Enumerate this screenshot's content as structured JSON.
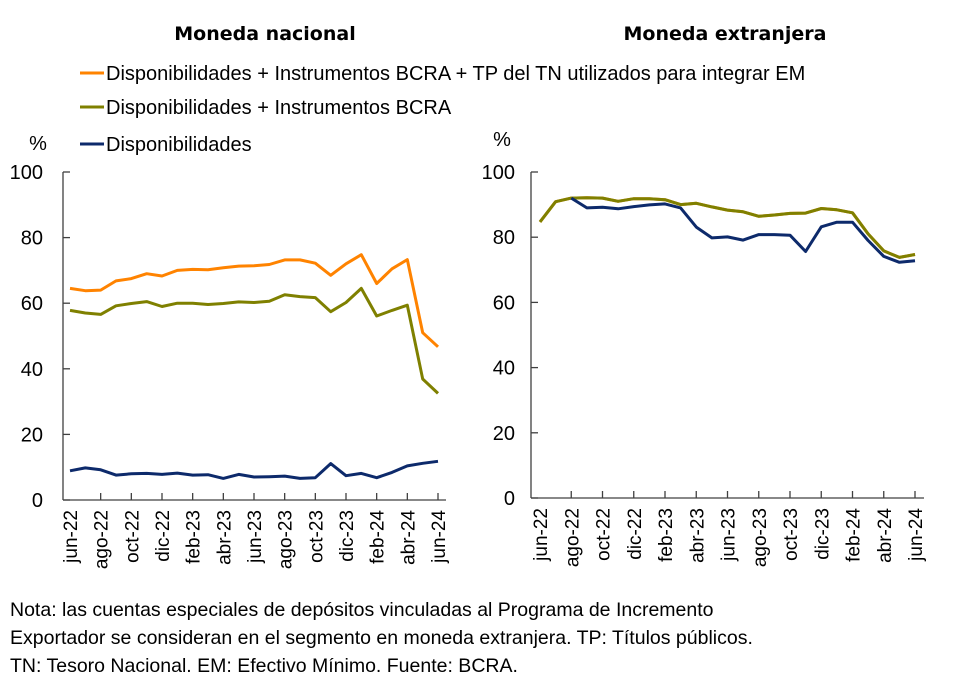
{
  "chart_data": [
    {
      "type": "line",
      "title": "Moneda nacional",
      "ylabel": "%",
      "xlabel": "",
      "ylim": [
        0,
        100
      ],
      "yticks": [
        0,
        20,
        40,
        60,
        80,
        100
      ],
      "grid": false,
      "legend_position": "top",
      "x": [
        "jun-22",
        "jul-22",
        "ago-22",
        "sep-22",
        "oct-22",
        "nov-22",
        "dic-22",
        "ene-23",
        "feb-23",
        "mar-23",
        "abr-23",
        "may-23",
        "jun-23",
        "jul-23",
        "ago-23",
        "sep-23",
        "oct-23",
        "nov-23",
        "dic-23",
        "ene-24",
        "feb-24",
        "mar-24",
        "abr-24",
        "may-24",
        "jun-24"
      ],
      "xtick_labels": [
        "jun-22",
        "ago-22",
        "oct-22",
        "dic-22",
        "feb-23",
        "abr-23",
        "jun-23",
        "ago-23",
        "oct-23",
        "dic-23",
        "feb-24",
        "abr-24",
        "jun-24"
      ],
      "series": [
        {
          "name": "Disponibilidades + Instrumentos BCRA + TP del TN utilizados para integrar EM",
          "color": "#ff8300",
          "values": [
            64.5,
            63.8,
            64.0,
            66.8,
            67.5,
            69.0,
            68.3,
            70.0,
            70.3,
            70.2,
            70.8,
            71.3,
            71.4,
            71.8,
            73.2,
            73.2,
            72.2,
            68.5,
            72.0,
            74.8,
            66.0,
            70.5,
            73.3,
            51.0,
            46.7
          ]
        },
        {
          "name": "Disponibilidades + Instrumentos BCRA",
          "color": "#7f8000",
          "values": [
            57.8,
            57.0,
            56.6,
            59.2,
            59.9,
            60.5,
            59.0,
            60.0,
            60.0,
            59.6,
            59.9,
            60.4,
            60.2,
            60.6,
            62.6,
            62.0,
            61.7,
            57.4,
            60.2,
            64.5,
            56.1,
            57.8,
            59.4,
            36.9,
            32.5
          ]
        },
        {
          "name": "Disponibilidades",
          "color": "#0d2a6b",
          "values": [
            8.9,
            9.8,
            9.2,
            7.6,
            8.0,
            8.1,
            7.8,
            8.2,
            7.6,
            7.7,
            6.6,
            7.8,
            7.0,
            7.1,
            7.3,
            6.6,
            6.8,
            11.1,
            7.4,
            8.1,
            6.8,
            8.4,
            10.4,
            11.2,
            11.8
          ]
        }
      ]
    },
    {
      "type": "line",
      "title": "Moneda extranjera",
      "ylabel": "%",
      "xlabel": "",
      "ylim": [
        0,
        100
      ],
      "yticks": [
        0,
        20,
        40,
        60,
        80,
        100
      ],
      "grid": false,
      "x": [
        "jun-22",
        "jul-22",
        "ago-22",
        "sep-22",
        "oct-22",
        "nov-22",
        "dic-22",
        "ene-23",
        "feb-23",
        "mar-23",
        "abr-23",
        "may-23",
        "jun-23",
        "jul-23",
        "ago-23",
        "sep-23",
        "oct-23",
        "nov-23",
        "dic-23",
        "ene-24",
        "feb-24",
        "mar-24",
        "abr-24",
        "may-24",
        "jun-24"
      ],
      "xtick_labels": [
        "jun-22",
        "ago-22",
        "oct-22",
        "dic-22",
        "feb-23",
        "abr-23",
        "jun-23",
        "ago-23",
        "oct-23",
        "dic-23",
        "feb-24",
        "abr-24",
        "jun-24"
      ],
      "series": [
        {
          "name": "Disponibilidades + Instrumentos BCRA + TP del TN utilizados para integrar EM",
          "color": "#ff8300",
          "values": [
            84.7,
            90.9,
            92.0,
            92.1,
            92.0,
            91.0,
            91.8,
            91.8,
            91.5,
            90.0,
            90.4,
            89.3,
            88.3,
            87.8,
            86.4,
            86.8,
            87.3,
            87.4,
            88.8,
            88.4,
            87.5,
            81.0,
            75.8,
            73.8,
            74.7
          ]
        },
        {
          "name": "Disponibilidades + Instrumentos BCRA",
          "color": "#7f8000",
          "values": [
            84.7,
            90.9,
            92.0,
            92.1,
            92.0,
            91.0,
            91.8,
            91.8,
            91.5,
            90.0,
            90.4,
            89.3,
            88.3,
            87.8,
            86.4,
            86.8,
            87.3,
            87.4,
            88.8,
            88.4,
            87.5,
            81.0,
            75.8,
            73.8,
            74.7
          ]
        },
        {
          "name": "Disponibilidades",
          "color": "#0d2a6b",
          "values": [
            null,
            null,
            92.0,
            89.0,
            89.2,
            88.7,
            89.4,
            89.9,
            90.2,
            89.0,
            83.1,
            79.8,
            80.1,
            79.1,
            80.8,
            80.8,
            80.6,
            75.6,
            83.2,
            84.6,
            84.6,
            79.0,
            74.1,
            72.3,
            72.8
          ]
        }
      ]
    }
  ],
  "legend": [
    {
      "label": "Disponibilidades + Instrumentos BCRA + TP del TN utilizados para integrar EM",
      "color": "#ff8300"
    },
    {
      "label": "Disponibilidades + Instrumentos BCRA",
      "color": "#7f8000"
    },
    {
      "label": "Disponibilidades",
      "color": "#0d2a6b"
    }
  ],
  "note": [
    "Nota: las cuentas especiales de depósitos vinculadas al Programa de Incremento",
    "Exportador se consideran en el segmento en moneda extranjera. TP: Títulos públicos.",
    "TN: Tesoro Nacional. EM: Efectivo Mínimo. Fuente: BCRA."
  ]
}
